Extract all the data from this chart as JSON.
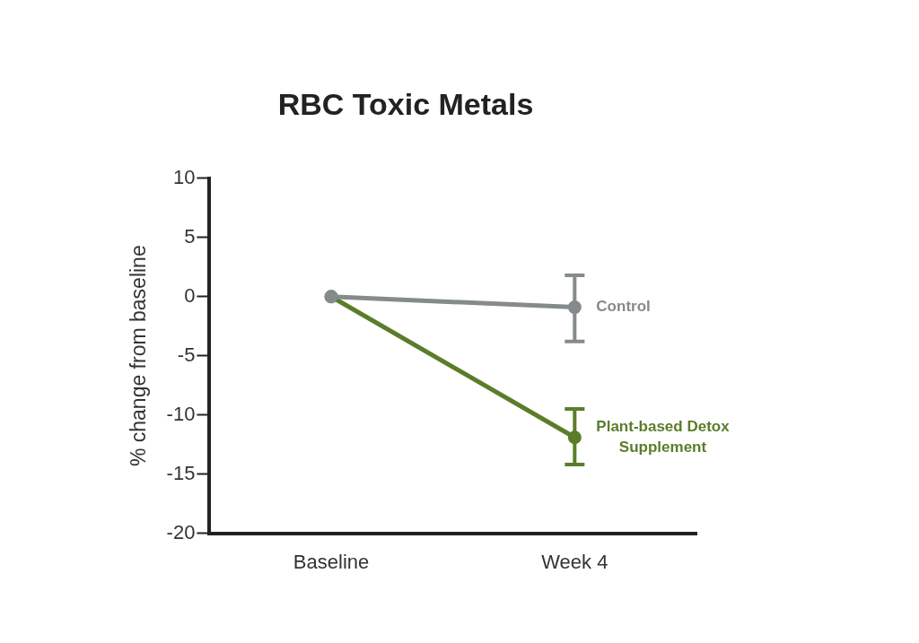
{
  "chart_data": {
    "type": "line",
    "title": "RBC Toxic Metals",
    "ylabel": "% change from baseline",
    "categories": [
      "Baseline",
      "Week 4"
    ],
    "series": [
      {
        "name": "Control",
        "color": "#858a8d",
        "values": [
          0,
          -0.9
        ],
        "errors": [
          null,
          [
            -3.8,
            1.8
          ]
        ]
      },
      {
        "name": "Plant-based Detox Supplement",
        "color": "#5a7d2a",
        "values": [
          0,
          -11.9
        ],
        "errors": [
          null,
          [
            -14.2,
            -9.5
          ]
        ]
      }
    ],
    "ylim": [
      -20,
      10
    ],
    "yticks": [
      -20,
      -15,
      -10,
      -5,
      0,
      5,
      10
    ],
    "grid": false,
    "legend": false,
    "marker": "circle",
    "line_style": "solid"
  }
}
